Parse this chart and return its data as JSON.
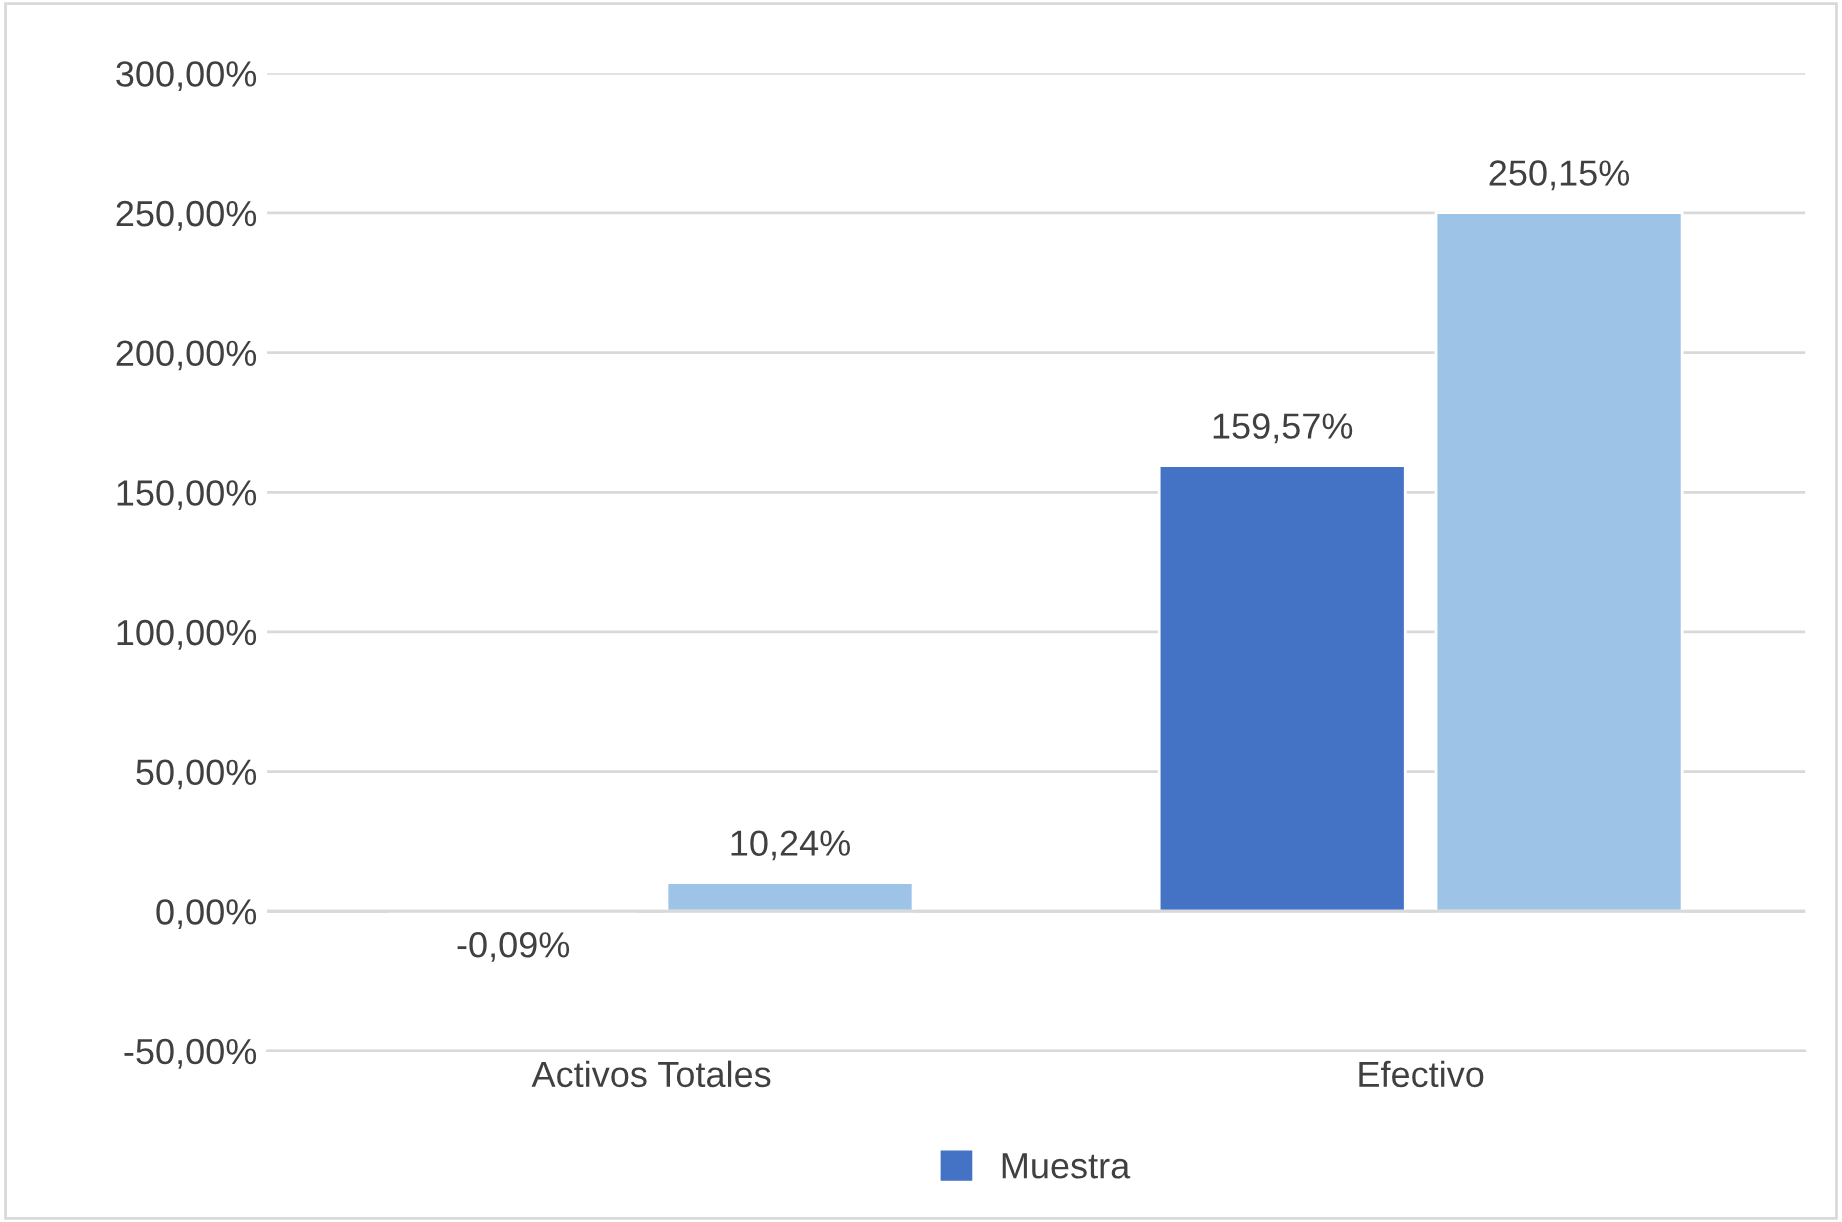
{
  "chart_data": {
    "type": "bar",
    "categories": [
      "Activos Totales",
      "Efectivo"
    ],
    "series": [
      {
        "name": "Muestra",
        "color": "#4472c4",
        "values": [
          -0.09,
          159.57
        ],
        "value_labels": [
          "-0,09%",
          "159,57%"
        ]
      },
      {
        "color": "#9dc3e6",
        "values": [
          10.24,
          250.15
        ],
        "value_labels": [
          "10,24%",
          "250,15%"
        ]
      }
    ],
    "ylim": [
      -50,
      300
    ],
    "yticks": [
      {
        "value": -50,
        "label": "-50,00%"
      },
      {
        "value": 0,
        "label": "0,00%"
      },
      {
        "value": 50,
        "label": "50,00%"
      },
      {
        "value": 100,
        "label": "100,00%"
      },
      {
        "value": 150,
        "label": "150,00%"
      },
      {
        "value": 200,
        "label": "200,00%"
      },
      {
        "value": 250,
        "label": "250,00%"
      },
      {
        "value": 300,
        "label": "300,00%"
      }
    ],
    "grid": "y",
    "legend": "bottom"
  }
}
